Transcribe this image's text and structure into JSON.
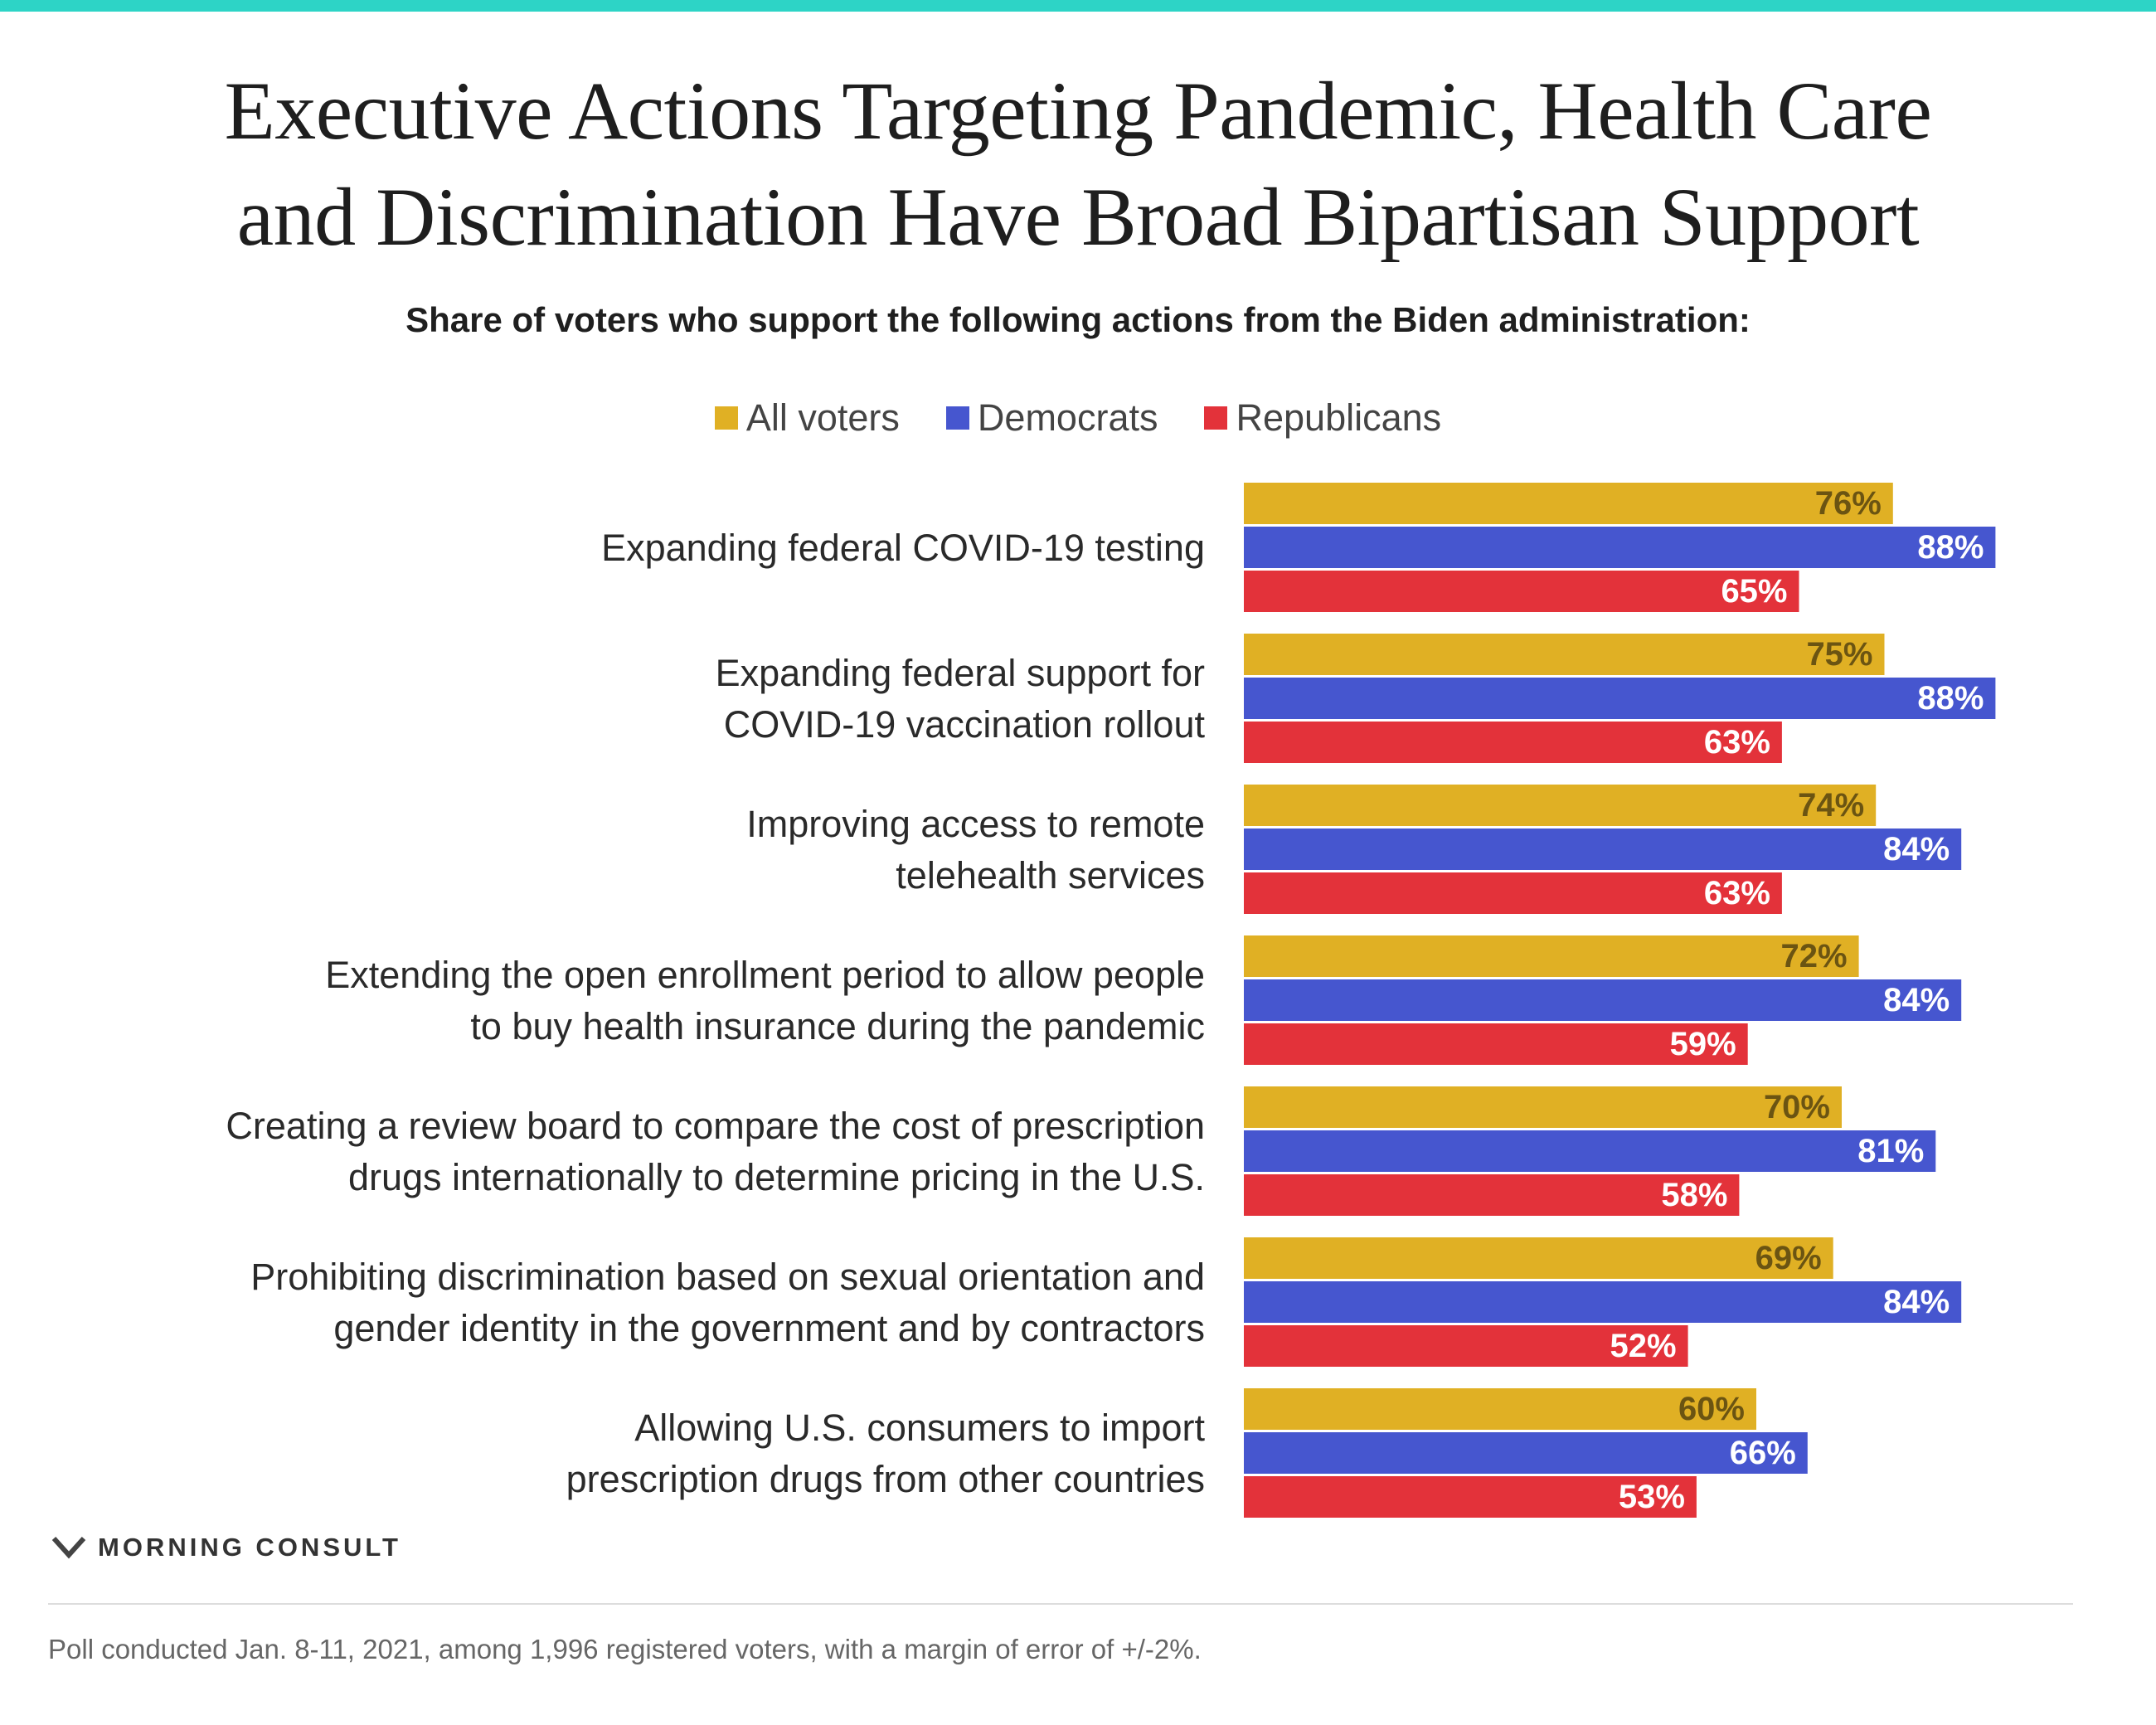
{
  "colors": {
    "accent_bar": "#2dd4c6",
    "all_voters": "#e0b024",
    "democrats": "#4656cf",
    "republicans": "#e3323a",
    "all_voters_label": "#6b5412",
    "bar_label_light": "#ffffff"
  },
  "chart_data": {
    "type": "bar",
    "orientation": "horizontal",
    "title": "Executive Actions Targeting Pandemic, Health Care and Discrimination Have Broad Bipartisan Support",
    "title_lines": [
      "Executive Actions Targeting Pandemic, Health Care",
      "and Discrimination Have Broad Bipartisan Support"
    ],
    "subtitle": "Share of voters who support the following actions from the Biden administration:",
    "legend_position": "top-center",
    "xlim": [
      0,
      100
    ],
    "grid": false,
    "categories": [
      "Expanding federal COVID-19 testing",
      "Expanding federal support for COVID-19 vaccination rollout",
      "Improving access to remote telehealth services",
      "Extending the open enrollment period to allow people to buy health insurance during the pandemic",
      "Creating a review board to compare the cost of prescription drugs internationally to determine pricing in the U.S.",
      "Prohibiting discrimination based on sexual orientation and gender identity in the government and by contractors",
      "Allowing U.S. consumers to import prescription drugs from other countries"
    ],
    "category_lines": [
      [
        "Expanding federal COVID-19 testing"
      ],
      [
        "Expanding federal support for",
        "COVID-19 vaccination rollout"
      ],
      [
        "Improving access to remote",
        "telehealth services"
      ],
      [
        "Extending the open enrollment period to allow people",
        "to buy health insurance during the pandemic"
      ],
      [
        "Creating a review board to compare the cost of prescription",
        "drugs internationally to determine pricing in the U.S."
      ],
      [
        "Prohibiting discrimination based on sexual orientation and",
        "gender identity in the government and by contractors"
      ],
      [
        "Allowing U.S. consumers to import",
        "prescription drugs from other countries"
      ]
    ],
    "series": [
      {
        "name": "All voters",
        "color": "#e0b024",
        "values": [
          76,
          75,
          74,
          72,
          70,
          69,
          60
        ]
      },
      {
        "name": "Democrats",
        "color": "#4656cf",
        "values": [
          88,
          88,
          84,
          84,
          81,
          84,
          66
        ]
      },
      {
        "name": "Republicans",
        "color": "#e3323a",
        "values": [
          65,
          63,
          63,
          59,
          58,
          52,
          53
        ]
      }
    ],
    "value_suffix": "%"
  },
  "brand": {
    "name": "MORNING CONSULT",
    "icon": "morning-consult-logo-icon"
  },
  "footnote": "Poll conducted Jan. 8-11, 2021, among 1,996 registered voters, with a margin of error of +/-2%."
}
